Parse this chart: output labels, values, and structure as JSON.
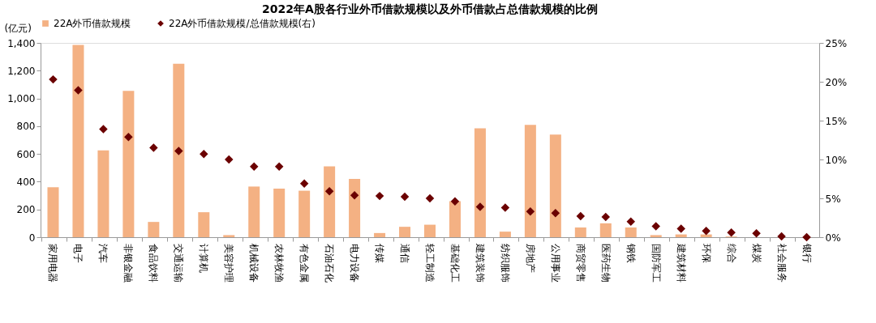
{
  "chart_data": {
    "type": "bar",
    "title": "2022年A股各行业外币借款规模以及外币借款占总借款规模的比例",
    "ylabel": "(亿元)",
    "categories": [
      "家用电器",
      "电子",
      "汽车",
      "非银金融",
      "食品饮料",
      "交通运输",
      "计算机",
      "美容护理",
      "机械设备",
      "农林牧渔",
      "有色金属",
      "石油石化",
      "电力设备",
      "传媒",
      "通信",
      "轻工制造",
      "基础化工",
      "建筑装饰",
      "纺织服饰",
      "房地产",
      "公用事业",
      "商贸零售",
      "医药生物",
      "钢铁",
      "国防军工",
      "建筑材料",
      "环保",
      "综合",
      "煤炭",
      "社会服务",
      "银行"
    ],
    "series": [
      {
        "name": "22A外币借款规模",
        "color": "#f4b183",
        "values": [
          360,
          1385,
          625,
          1055,
          110,
          1250,
          180,
          15,
          365,
          350,
          335,
          510,
          420,
          30,
          75,
          90,
          260,
          785,
          40,
          810,
          740,
          70,
          100,
          70,
          15,
          20,
          20,
          5,
          null,
          0,
          0
        ]
      },
      {
        "name": "22A外币借款规模/总借款规模(右)",
        "type": "scatter",
        "axis": "y2",
        "marker": "diamond",
        "color": "#6b0000",
        "values": [
          20.3,
          18.9,
          13.9,
          12.9,
          11.5,
          11.1,
          10.7,
          10.0,
          9.1,
          9.1,
          6.9,
          5.9,
          5.4,
          5.3,
          5.2,
          5.0,
          4.6,
          3.9,
          3.8,
          3.3,
          3.1,
          2.7,
          2.6,
          2.0,
          1.4,
          1.1,
          0.8,
          0.6,
          0.5,
          0.1,
          0.0
        ]
      }
    ],
    "ylim": [
      0,
      1400
    ],
    "yticks": [
      0,
      200,
      400,
      600,
      800,
      {
        "value": 1000,
        "label": "1,000"
      },
      {
        "value": 1200,
        "label": "1,200"
      },
      {
        "value": 1400,
        "label": "1,400"
      }
    ],
    "y2lim": [
      0,
      25
    ],
    "y2ticks": [
      {
        "value": 0,
        "label": "0%"
      },
      {
        "value": 5,
        "label": "5%"
      },
      {
        "value": 10,
        "label": "10%"
      },
      {
        "value": 15,
        "label": "15%"
      },
      {
        "value": 20,
        "label": "20%"
      },
      {
        "value": 25,
        "label": "25%"
      }
    ],
    "legend": "top",
    "grid": false
  }
}
